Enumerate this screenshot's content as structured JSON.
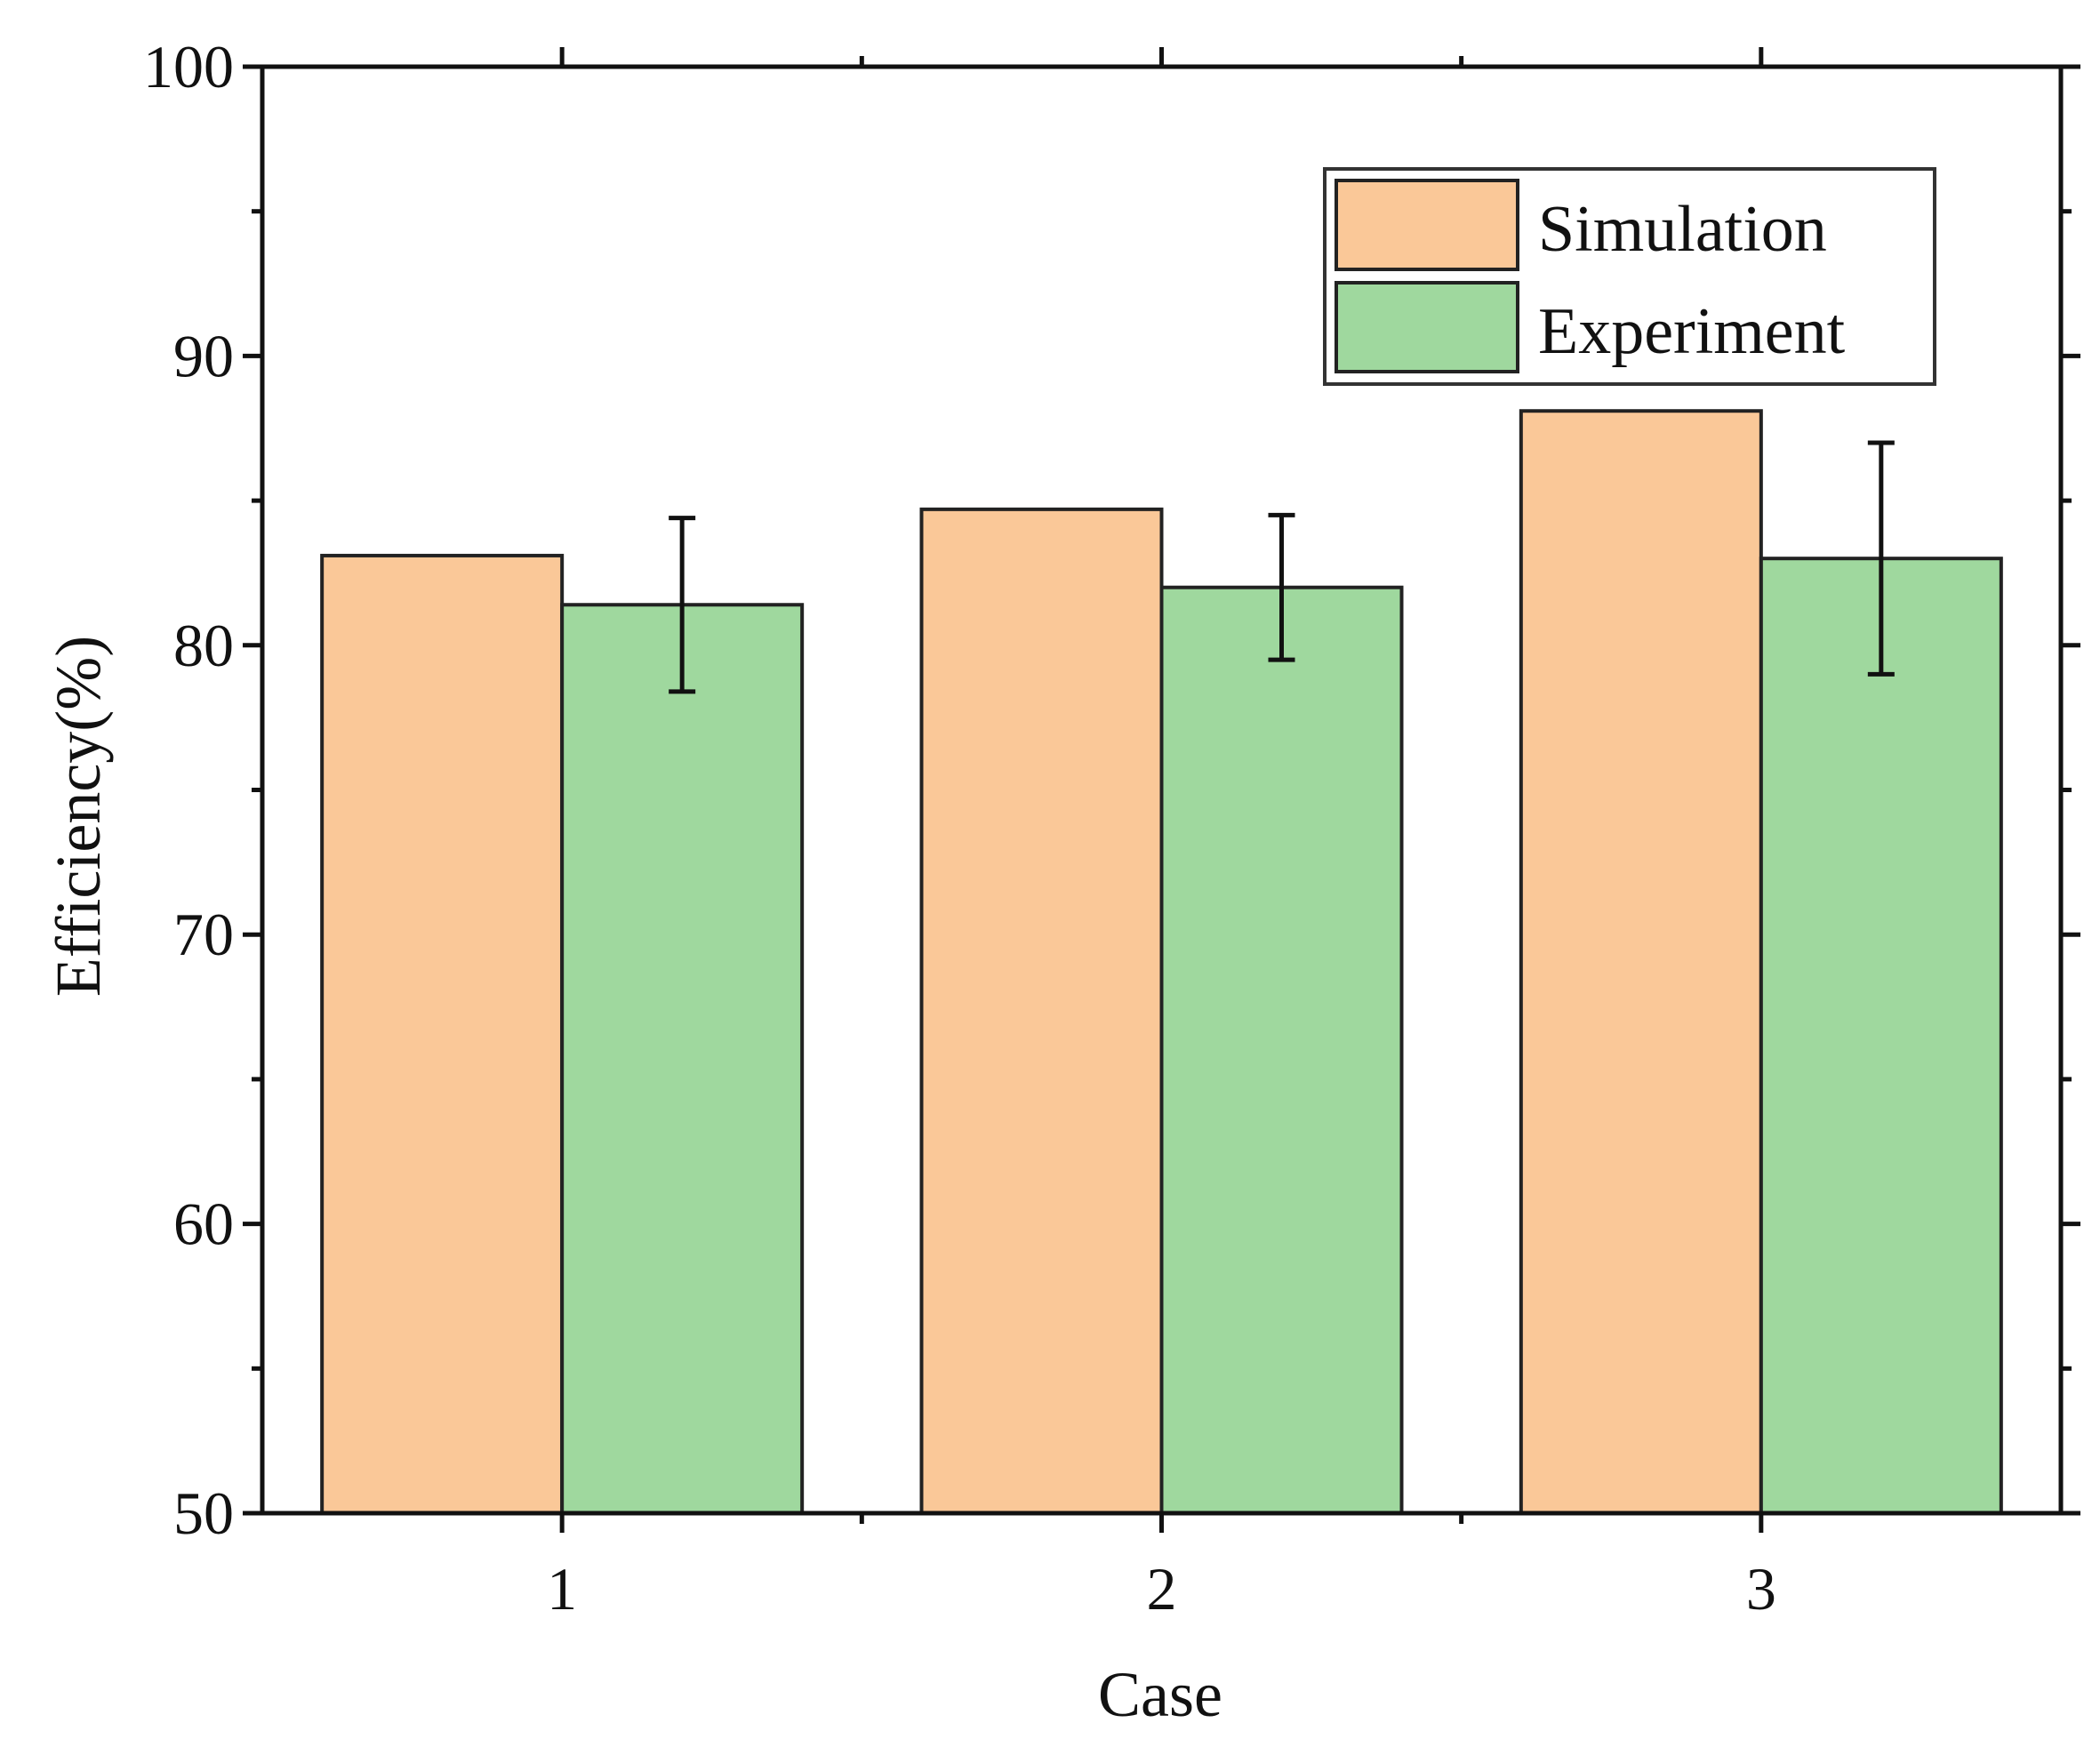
{
  "chart_data": {
    "type": "bar",
    "title": "",
    "xlabel": "Case",
    "ylabel": "Efficiency(%)",
    "ylim": [
      50,
      100
    ],
    "yticks": [
      50,
      60,
      70,
      80,
      90,
      100
    ],
    "categories": [
      "1",
      "2",
      "3"
    ],
    "series": [
      {
        "name": "Simulation",
        "color": "#FAC898",
        "values": [
          83.1,
          84.7,
          88.1
        ]
      },
      {
        "name": "Experiment",
        "color": "#9FD89E",
        "values": [
          81.4,
          82.0,
          83.0
        ],
        "error": [
          3.0,
          2.5,
          4.0
        ]
      }
    ],
    "legend_position": "top-right",
    "grid": false
  }
}
